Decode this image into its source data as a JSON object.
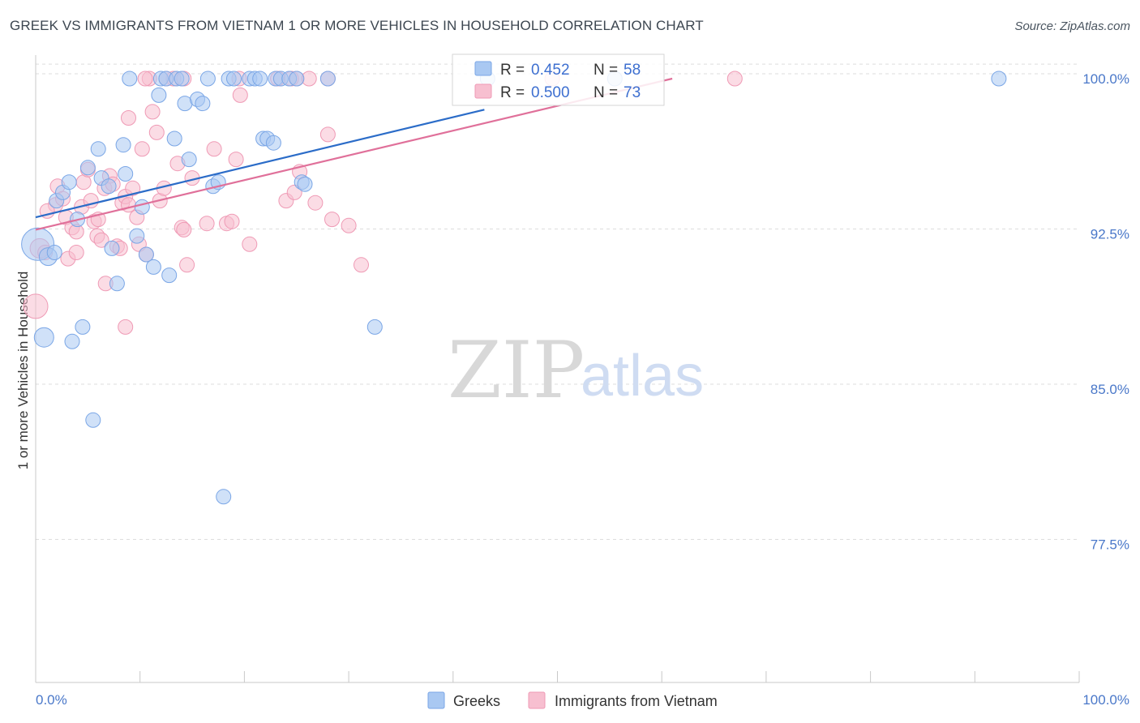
{
  "header": {
    "title": "GREEK VS IMMIGRANTS FROM VIETNAM 1 OR MORE VEHICLES IN HOUSEHOLD CORRELATION CHART",
    "source": "Source: ZipAtlas.com"
  },
  "watermark": {
    "zip": "ZIP",
    "atlas": "atlas"
  },
  "colors": {
    "blue_fill": "#a9c8f2",
    "blue_stroke": "#7aa6e6",
    "blue_line": "#2b6cc8",
    "pink_fill": "#f7bfd0",
    "pink_stroke": "#ef9ab5",
    "pink_line": "#e0709a",
    "grid": "#dddddd",
    "tick_text": "#4a78c9"
  },
  "stats": {
    "r_label": "R =",
    "n_label": "N =",
    "series": [
      {
        "r": "0.452",
        "n": "58"
      },
      {
        "r": "0.500",
        "n": "73"
      }
    ]
  },
  "chart_data": {
    "type": "scatter",
    "title": "GREEK VS IMMIGRANTS FROM VIETNAM 1 OR MORE VEHICLES IN HOUSEHOLD CORRELATION CHART",
    "xlabel": "",
    "ylabel": "1 or more Vehicles in Household",
    "xlim": [
      0,
      100
    ],
    "ylim": [
      71.5,
      101.5
    ],
    "x_tick_labels": [
      "0.0%",
      "100.0%"
    ],
    "y_ticks": [
      100.0,
      92.5,
      85.0,
      77.5
    ],
    "y_tick_labels": [
      "100.0%",
      "92.5%",
      "85.0%",
      "77.5%"
    ],
    "grid": true,
    "legend_position": "bottom-center",
    "series": [
      {
        "name": "Greeks",
        "color": "#a9c8f2",
        "trend": {
          "x": [
            0,
            43
          ],
          "y": [
            93.3,
            98.5
          ]
        },
        "points": [
          {
            "x": 0.2,
            "y": 92.0,
            "s": 20
          },
          {
            "x": 1.2,
            "y": 91.4,
            "s": 11
          },
          {
            "x": 1.8,
            "y": 91.6,
            "s": 9
          },
          {
            "x": 0.8,
            "y": 87.5,
            "s": 12
          },
          {
            "x": 3.5,
            "y": 87.3,
            "s": 9
          },
          {
            "x": 4.5,
            "y": 88.0,
            "s": 9
          },
          {
            "x": 5.5,
            "y": 83.5,
            "s": 9
          },
          {
            "x": 2.0,
            "y": 94.1,
            "s": 9
          },
          {
            "x": 2.6,
            "y": 94.5,
            "s": 9
          },
          {
            "x": 3.2,
            "y": 95.0,
            "s": 9
          },
          {
            "x": 4.0,
            "y": 93.2,
            "s": 9
          },
          {
            "x": 5.0,
            "y": 95.7,
            "s": 9
          },
          {
            "x": 6.3,
            "y": 95.2,
            "s": 9
          },
          {
            "x": 7.0,
            "y": 94.8,
            "s": 9
          },
          {
            "x": 6.0,
            "y": 96.6,
            "s": 9
          },
          {
            "x": 8.4,
            "y": 96.8,
            "s": 9
          },
          {
            "x": 8.6,
            "y": 95.4,
            "s": 9
          },
          {
            "x": 7.3,
            "y": 91.8,
            "s": 9
          },
          {
            "x": 7.8,
            "y": 90.1,
            "s": 9
          },
          {
            "x": 10.2,
            "y": 93.8,
            "s": 9
          },
          {
            "x": 9.7,
            "y": 92.4,
            "s": 9
          },
          {
            "x": 10.6,
            "y": 91.5,
            "s": 9
          },
          {
            "x": 11.3,
            "y": 90.9,
            "s": 9
          },
          {
            "x": 12.8,
            "y": 90.5,
            "s": 9
          },
          {
            "x": 11.8,
            "y": 99.2,
            "s": 9
          },
          {
            "x": 13.3,
            "y": 97.1,
            "s": 9
          },
          {
            "x": 14.3,
            "y": 98.8,
            "s": 9
          },
          {
            "x": 15.5,
            "y": 99.0,
            "s": 9
          },
          {
            "x": 16.0,
            "y": 98.8,
            "s": 9
          },
          {
            "x": 14.7,
            "y": 96.1,
            "s": 9
          },
          {
            "x": 17.0,
            "y": 94.8,
            "s": 9
          },
          {
            "x": 17.5,
            "y": 95.0,
            "s": 9
          },
          {
            "x": 18.0,
            "y": 79.8,
            "s": 9
          },
          {
            "x": 9.0,
            "y": 100.0,
            "s": 9
          },
          {
            "x": 12.0,
            "y": 100.0,
            "s": 9
          },
          {
            "x": 12.5,
            "y": 100.0,
            "s": 9
          },
          {
            "x": 13.5,
            "y": 100.0,
            "s": 9
          },
          {
            "x": 14.0,
            "y": 100.0,
            "s": 9
          },
          {
            "x": 16.5,
            "y": 100.0,
            "s": 9
          },
          {
            "x": 18.5,
            "y": 100.0,
            "s": 9
          },
          {
            "x": 19.0,
            "y": 100.0,
            "s": 9
          },
          {
            "x": 20.5,
            "y": 100.0,
            "s": 9
          },
          {
            "x": 21.0,
            "y": 100.0,
            "s": 9
          },
          {
            "x": 21.5,
            "y": 100.0,
            "s": 9
          },
          {
            "x": 23.0,
            "y": 100.0,
            "s": 9
          },
          {
            "x": 23.5,
            "y": 100.0,
            "s": 9
          },
          {
            "x": 24.3,
            "y": 100.0,
            "s": 9
          },
          {
            "x": 25.0,
            "y": 100.0,
            "s": 9
          },
          {
            "x": 28.0,
            "y": 100.0,
            "s": 9
          },
          {
            "x": 21.8,
            "y": 97.1,
            "s": 9
          },
          {
            "x": 22.2,
            "y": 97.1,
            "s": 9
          },
          {
            "x": 22.8,
            "y": 96.9,
            "s": 9
          },
          {
            "x": 25.5,
            "y": 95.0,
            "s": 9
          },
          {
            "x": 25.8,
            "y": 94.9,
            "s": 9
          },
          {
            "x": 32.5,
            "y": 88.0,
            "s": 9
          },
          {
            "x": 43.3,
            "y": 100.0,
            "s": 9
          },
          {
            "x": 55.5,
            "y": 100.0,
            "s": 9
          },
          {
            "x": 92.3,
            "y": 100.0,
            "s": 9
          }
        ]
      },
      {
        "name": "Immigrants from Vietnam",
        "color": "#f7bfd0",
        "trend": {
          "x": [
            0,
            61
          ],
          "y": [
            92.7,
            100.0
          ]
        },
        "points": [
          {
            "x": 0.0,
            "y": 89.0,
            "s": 15
          },
          {
            "x": 0.4,
            "y": 91.8,
            "s": 12
          },
          {
            "x": 0.9,
            "y": 91.6,
            "s": 9
          },
          {
            "x": 1.9,
            "y": 93.9,
            "s": 9
          },
          {
            "x": 1.1,
            "y": 93.6,
            "s": 9
          },
          {
            "x": 2.1,
            "y": 94.8,
            "s": 9
          },
          {
            "x": 2.6,
            "y": 94.2,
            "s": 9
          },
          {
            "x": 2.9,
            "y": 93.3,
            "s": 9
          },
          {
            "x": 3.5,
            "y": 92.8,
            "s": 9
          },
          {
            "x": 3.9,
            "y": 92.6,
            "s": 9
          },
          {
            "x": 3.1,
            "y": 91.3,
            "s": 9
          },
          {
            "x": 3.9,
            "y": 91.6,
            "s": 9
          },
          {
            "x": 4.4,
            "y": 93.8,
            "s": 9
          },
          {
            "x": 4.6,
            "y": 95.0,
            "s": 9
          },
          {
            "x": 5.0,
            "y": 95.6,
            "s": 9
          },
          {
            "x": 5.3,
            "y": 94.1,
            "s": 9
          },
          {
            "x": 5.6,
            "y": 93.1,
            "s": 9
          },
          {
            "x": 5.9,
            "y": 92.4,
            "s": 9
          },
          {
            "x": 6.0,
            "y": 93.2,
            "s": 9
          },
          {
            "x": 6.3,
            "y": 92.2,
            "s": 9
          },
          {
            "x": 6.6,
            "y": 94.7,
            "s": 9
          },
          {
            "x": 7.1,
            "y": 95.3,
            "s": 9
          },
          {
            "x": 7.4,
            "y": 94.9,
            "s": 9
          },
          {
            "x": 6.7,
            "y": 90.1,
            "s": 9
          },
          {
            "x": 7.8,
            "y": 91.9,
            "s": 9
          },
          {
            "x": 8.1,
            "y": 91.8,
            "s": 9
          },
          {
            "x": 8.3,
            "y": 94.0,
            "s": 9
          },
          {
            "x": 8.6,
            "y": 94.3,
            "s": 9
          },
          {
            "x": 8.9,
            "y": 93.9,
            "s": 9
          },
          {
            "x": 8.6,
            "y": 88.0,
            "s": 9
          },
          {
            "x": 8.9,
            "y": 98.1,
            "s": 9
          },
          {
            "x": 9.3,
            "y": 94.7,
            "s": 9
          },
          {
            "x": 9.7,
            "y": 93.3,
            "s": 9
          },
          {
            "x": 9.9,
            "y": 92.0,
            "s": 9
          },
          {
            "x": 10.2,
            "y": 96.6,
            "s": 9
          },
          {
            "x": 10.6,
            "y": 91.5,
            "s": 9
          },
          {
            "x": 10.9,
            "y": 100.0,
            "s": 9
          },
          {
            "x": 11.2,
            "y": 98.4,
            "s": 9
          },
          {
            "x": 11.6,
            "y": 97.4,
            "s": 9
          },
          {
            "x": 11.9,
            "y": 94.1,
            "s": 9
          },
          {
            "x": 12.3,
            "y": 94.7,
            "s": 9
          },
          {
            "x": 13.2,
            "y": 100.0,
            "s": 9
          },
          {
            "x": 13.6,
            "y": 95.9,
            "s": 9
          },
          {
            "x": 14.0,
            "y": 92.8,
            "s": 9
          },
          {
            "x": 14.2,
            "y": 92.7,
            "s": 9
          },
          {
            "x": 14.5,
            "y": 91.0,
            "s": 9
          },
          {
            "x": 15.0,
            "y": 95.2,
            "s": 9
          },
          {
            "x": 16.4,
            "y": 93.0,
            "s": 9
          },
          {
            "x": 17.1,
            "y": 96.6,
            "s": 9
          },
          {
            "x": 18.3,
            "y": 93.0,
            "s": 9
          },
          {
            "x": 18.8,
            "y": 93.1,
            "s": 9
          },
          {
            "x": 19.2,
            "y": 96.1,
            "s": 9
          },
          {
            "x": 19.6,
            "y": 99.2,
            "s": 9
          },
          {
            "x": 20.5,
            "y": 92.0,
            "s": 9
          },
          {
            "x": 24.0,
            "y": 94.1,
            "s": 9
          },
          {
            "x": 24.8,
            "y": 94.5,
            "s": 9
          },
          {
            "x": 25.3,
            "y": 95.5,
            "s": 9
          },
          {
            "x": 26.8,
            "y": 94.0,
            "s": 9
          },
          {
            "x": 28.4,
            "y": 93.2,
            "s": 9
          },
          {
            "x": 28.0,
            "y": 97.3,
            "s": 9
          },
          {
            "x": 30.0,
            "y": 92.9,
            "s": 9
          },
          {
            "x": 31.2,
            "y": 91.0,
            "s": 9
          },
          {
            "x": 10.5,
            "y": 100.0,
            "s": 9
          },
          {
            "x": 12.5,
            "y": 100.0,
            "s": 9
          },
          {
            "x": 14.2,
            "y": 100.0,
            "s": 9
          },
          {
            "x": 19.5,
            "y": 100.0,
            "s": 9
          },
          {
            "x": 23.2,
            "y": 100.0,
            "s": 9
          },
          {
            "x": 24.5,
            "y": 100.0,
            "s": 9
          },
          {
            "x": 25.0,
            "y": 100.0,
            "s": 9
          },
          {
            "x": 26.2,
            "y": 100.0,
            "s": 9
          },
          {
            "x": 28.0,
            "y": 100.0,
            "s": 9
          },
          {
            "x": 49.5,
            "y": 100.0,
            "s": 9
          },
          {
            "x": 67.0,
            "y": 100.0,
            "s": 9
          }
        ]
      }
    ]
  }
}
